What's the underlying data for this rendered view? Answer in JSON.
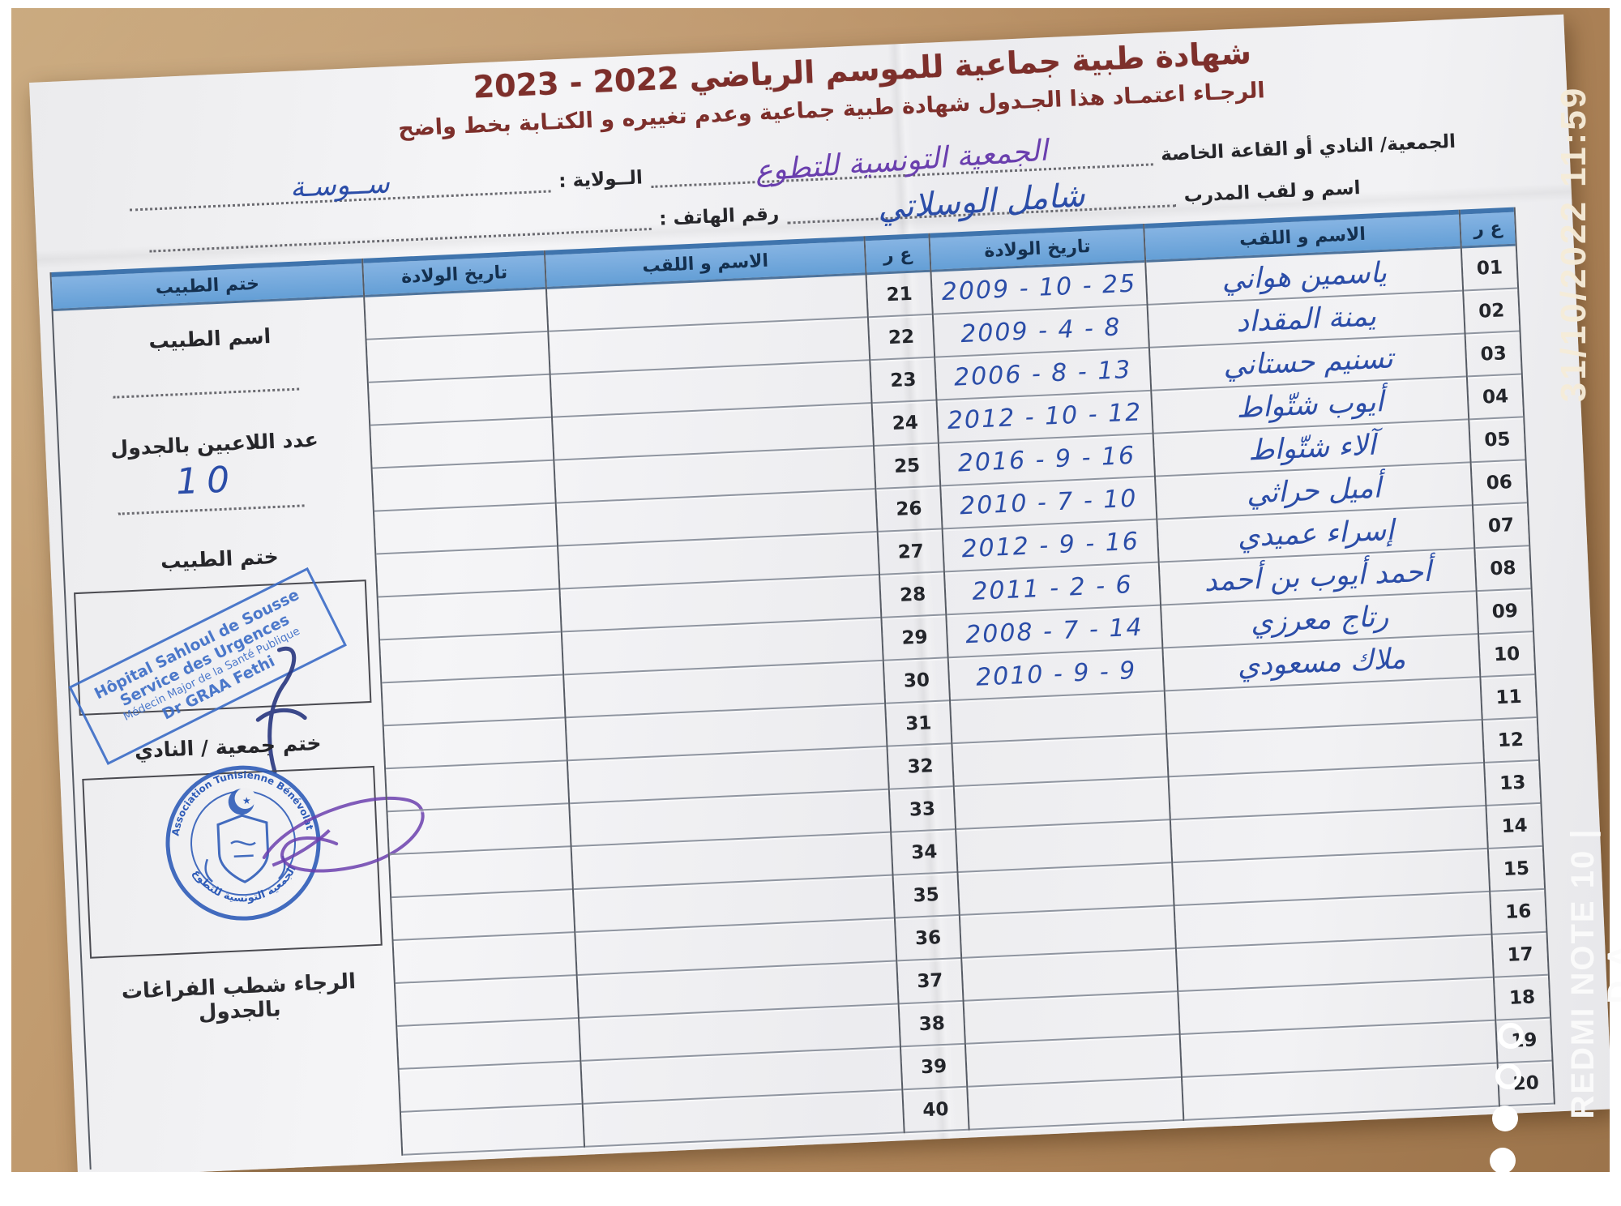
{
  "photo": {
    "timestamp": "31/10/2022 11:59",
    "camera_watermark": "REDMI NOTE 10 | D.A"
  },
  "header": {
    "title": "شهادة طبية جماعية  للموسم الرياضي  2022 - 2023",
    "instruction": "الرجـاء اعتمـاد هذا الجـدول  شهادة طبية جماعية وعدم تغييره و الكتـابة بخط واضح"
  },
  "form": {
    "association_label": "الجمعية/ النادي أو القاعة الخاصة",
    "association_value": "الجمعية التونسية للتطوع",
    "coach_label": "اسم و لقب المدرب",
    "coach_value": "شامل الوسلاتي",
    "state_label": "الــولاية :",
    "state_value": "ســوسـة",
    "phone_label": "رقم الهاتف :",
    "phone_value": ""
  },
  "table": {
    "headers": {
      "no": "ع ر",
      "name": "الاسم و اللقب",
      "dob": "تاريخ الولادة",
      "no2": "ع ر",
      "name2": "الاسم و اللقب",
      "dob2": "تاريخ الولادة",
      "stamp": "ختم الطبيب"
    },
    "rows": [
      {
        "no": "01",
        "name": "ياسمين هواني",
        "dob": "2009 - 10 - 25",
        "no2": "21",
        "name2": "",
        "dob2": ""
      },
      {
        "no": "02",
        "name": "يمنة المقداد",
        "dob": "2009 - 4 - 8",
        "no2": "22",
        "name2": "",
        "dob2": ""
      },
      {
        "no": "03",
        "name": "تسنيم حستاني",
        "dob": "2006 - 8 - 13",
        "no2": "23",
        "name2": "",
        "dob2": ""
      },
      {
        "no": "04",
        "name": "أيوب شتّواط",
        "dob": "2012 - 10 - 12",
        "no2": "24",
        "name2": "",
        "dob2": ""
      },
      {
        "no": "05",
        "name": "آلاء شتّواط",
        "dob": "2016 - 9 - 16",
        "no2": "25",
        "name2": "",
        "dob2": ""
      },
      {
        "no": "06",
        "name": "أميل حراثي",
        "dob": "2010 - 7 - 10",
        "no2": "26",
        "name2": "",
        "dob2": ""
      },
      {
        "no": "07",
        "name": "إسراء عميدي",
        "dob": "2012 - 9 - 16",
        "no2": "27",
        "name2": "",
        "dob2": ""
      },
      {
        "no": "08",
        "name": "أحمد أيوب بن أحمد",
        "dob": "2011 - 2 - 6",
        "no2": "28",
        "name2": "",
        "dob2": ""
      },
      {
        "no": "09",
        "name": "رتاج معرزي",
        "dob": "2008 - 7 - 14",
        "no2": "29",
        "name2": "",
        "dob2": ""
      },
      {
        "no": "10",
        "name": "ملاك مسعودي",
        "dob": "2010 - 9 - 9",
        "no2": "30",
        "name2": "",
        "dob2": ""
      },
      {
        "no": "11",
        "name": "",
        "dob": "",
        "no2": "31",
        "name2": "",
        "dob2": ""
      },
      {
        "no": "12",
        "name": "",
        "dob": "",
        "no2": "32",
        "name2": "",
        "dob2": ""
      },
      {
        "no": "13",
        "name": "",
        "dob": "",
        "no2": "33",
        "name2": "",
        "dob2": ""
      },
      {
        "no": "14",
        "name": "",
        "dob": "",
        "no2": "34",
        "name2": "",
        "dob2": ""
      },
      {
        "no": "15",
        "name": "",
        "dob": "",
        "no2": "35",
        "name2": "",
        "dob2": ""
      },
      {
        "no": "16",
        "name": "",
        "dob": "",
        "no2": "36",
        "name2": "",
        "dob2": ""
      },
      {
        "no": "17",
        "name": "",
        "dob": "",
        "no2": "37",
        "name2": "",
        "dob2": ""
      },
      {
        "no": "18",
        "name": "",
        "dob": "",
        "no2": "38",
        "name2": "",
        "dob2": ""
      },
      {
        "no": "19",
        "name": "",
        "dob": "",
        "no2": "39",
        "name2": "",
        "dob2": ""
      },
      {
        "no": "20",
        "name": "",
        "dob": "",
        "no2": "40",
        "name2": "",
        "dob2": ""
      }
    ]
  },
  "side": {
    "doctor_name_label": "اسم الطبيب",
    "players_count_label": "عدد اللاعبين بالجدول",
    "players_count_value": "10",
    "doctor_stamp_label": "ختم الطبيب",
    "doctor_stamp_line1": "Hôpital Sahloul de Sousse",
    "doctor_stamp_line2": "Service des Urgences",
    "doctor_stamp_line3": "Médecin Major de la Santé Publique",
    "doctor_stamp_line4": "Dr GRAA Fethi",
    "club_stamp_label": "ختم جمعية / النادي",
    "club_stamp_arc_top": "Association Tunisienne Bénévolat",
    "club_stamp_arc_bottom": "الجمعية التونسية للتطوع",
    "note": "الرجاء شطب  الفراغات بالجدول"
  },
  "colors": {
    "header_blue": "#86b4e3",
    "hw_blue": "#2b4da8",
    "hw_purple": "#6a3fae",
    "stamp_blue": "#3e6ec7",
    "title_maroon": "#7d2f2b",
    "desk_tan": "#bd9569"
  }
}
